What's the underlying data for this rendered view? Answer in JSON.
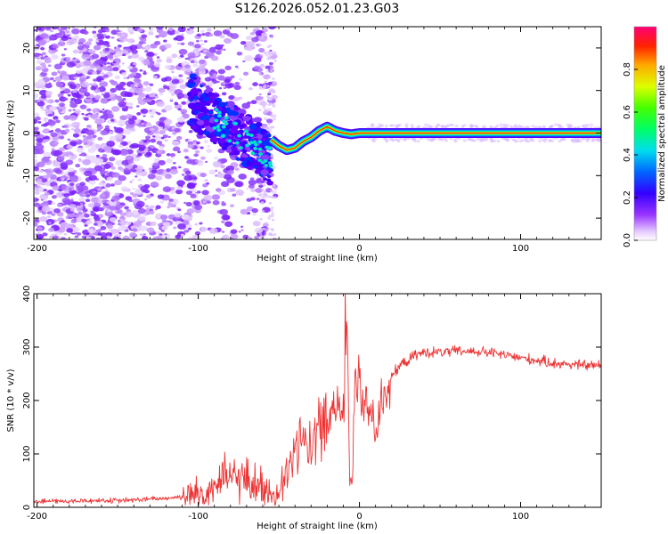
{
  "title": "S126.2026.052.01.23.G03",
  "chart_data": [
    {
      "type": "heatmap",
      "xlabel": "Height of straight line (km)",
      "ylabel": "Frequency (Hz)",
      "xlim": [
        -202,
        150
      ],
      "ylim": [
        -25,
        25
      ],
      "xticks": [
        -200,
        -100,
        0,
        100
      ],
      "yticks": [
        -20,
        -10,
        0,
        10,
        20
      ],
      "colorbar": {
        "label": "Normalized spectral amplitude",
        "ticks": [
          0.0,
          0.2,
          0.4,
          0.6,
          0.8
        ],
        "range": [
          0,
          1
        ],
        "colors": [
          "#ffffff",
          "#cc99ff",
          "#7a00ff",
          "#0000ff",
          "#00ccff",
          "#00ff66",
          "#33ff00",
          "#ffff00",
          "#ff8800",
          "#ff0000",
          "#ff0080"
        ]
      },
      "ridge": {
        "x": [
          -55,
          -50,
          -45,
          -40,
          -35,
          -30,
          -25,
          -20,
          -15,
          -10,
          -5,
          0,
          5,
          10,
          150
        ],
        "y": [
          -1.5,
          -3,
          -4,
          -3.5,
          -2,
          -1,
          0.5,
          1.5,
          0.5,
          0,
          -0.3,
          0,
          0,
          0,
          0
        ]
      }
    },
    {
      "type": "line",
      "xlabel": "Height of straight line (km)",
      "ylabel": "SNR (10 * v/v)",
      "xlim": [
        -202,
        150
      ],
      "ylim": [
        0,
        400
      ],
      "xticks": [
        -200,
        -100,
        0,
        100
      ],
      "yticks": [
        0,
        100,
        200,
        300,
        400
      ],
      "series": [
        {
          "name": "SNR",
          "color": "#ee3333",
          "x": [
            -202,
            -190,
            -180,
            -170,
            -160,
            -150,
            -140,
            -130,
            -120,
            -110,
            -100,
            -95,
            -90,
            -85,
            -80,
            -75,
            -70,
            -65,
            -60,
            -55,
            -50,
            -45,
            -40,
            -35,
            -30,
            -25,
            -20,
            -15,
            -10,
            -8,
            -5,
            -3,
            0,
            5,
            10,
            15,
            20,
            25,
            30,
            35,
            40,
            50,
            60,
            70,
            80,
            90,
            100,
            110,
            120,
            130,
            140,
            150
          ],
          "y": [
            10,
            12,
            11,
            12,
            13,
            12,
            14,
            15,
            17,
            20,
            25,
            30,
            40,
            50,
            55,
            55,
            50,
            45,
            35,
            25,
            20,
            60,
            100,
            130,
            120,
            150,
            170,
            200,
            190,
            250,
            60,
            230,
            230,
            170,
            140,
            220,
            245,
            265,
            275,
            285,
            290,
            290,
            292,
            292,
            290,
            285,
            280,
            275,
            270,
            268,
            266,
            265
          ]
        }
      ]
    }
  ]
}
